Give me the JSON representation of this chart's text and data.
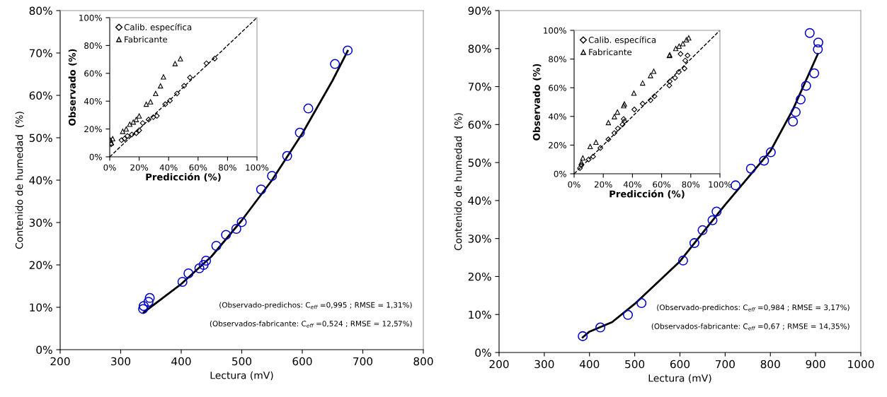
{
  "chart_data": [
    {
      "type": "scatter",
      "xlabel": "Lectura (mV)",
      "ylabel": "Contenido de humedad  (%)",
      "xlim": [
        200,
        800
      ],
      "xticks": [
        200,
        300,
        400,
        500,
        600,
        700,
        800
      ],
      "ylim": [
        0,
        80
      ],
      "yticks": [
        {
          "value": 0,
          "label": "0%"
        },
        {
          "value": 10,
          "label": "10%"
        },
        {
          "value": 20,
          "label": "20%"
        },
        {
          "value": 30,
          "label": "30%"
        },
        {
          "value": 40,
          "label": "40%"
        },
        {
          "value": 50,
          "label": "50%"
        },
        {
          "value": 60,
          "label": "60%"
        },
        {
          "value": 70,
          "label": "70%"
        },
        {
          "value": 80,
          "label": "80%"
        }
      ],
      "grid": false,
      "legend": false,
      "annotations": [
        "(Observado-predichos: C$_{eff}$ =0,995 ; RMSE = 1,31%)",
        "(Observados-fabricante: C$_{eff}$ =0,524 ; RMSE = 12,57%)"
      ],
      "series": [
        {
          "type": "scatter",
          "marker": "circle",
          "color": "#0000cc",
          "x": [
            337,
            338,
            346,
            348,
            402,
            412,
            430,
            437,
            441,
            458,
            474,
            491,
            500,
            532,
            550,
            575,
            596,
            610,
            654,
            675
          ],
          "values": [
            9.6,
            10.3,
            11.3,
            12.2,
            16,
            18,
            19.2,
            20,
            21,
            24.5,
            27.1,
            28.5,
            30.1,
            37.8,
            41,
            45.7,
            51.2,
            56.9,
            67.4,
            70.6
          ]
        },
        {
          "type": "line",
          "marker": "none",
          "line_style": "solid",
          "color": "#000000",
          "x": [
            338,
            400,
            450,
            500,
            550,
            600,
            650,
            675
          ],
          "values": [
            8.8,
            15.5,
            22,
            30.5,
            40,
            51,
            63.5,
            70.5
          ]
        }
      ]
    },
    {
      "type": "scatter",
      "xlabel": "Predicción (%)",
      "ylabel": "Observado (%)",
      "xlim": [
        0,
        100
      ],
      "xticks": [
        {
          "value": 0,
          "label": "0%"
        },
        {
          "value": 20,
          "label": "20%"
        },
        {
          "value": 40,
          "label": "40%"
        },
        {
          "value": 60,
          "label": "60%"
        },
        {
          "value": 80,
          "label": "80%"
        },
        {
          "value": 100,
          "label": "100%"
        }
      ],
      "ylim": [
        0,
        100
      ],
      "yticks": [
        {
          "value": 0,
          "label": "0%"
        },
        {
          "value": 20,
          "label": "20%"
        },
        {
          "value": 40,
          "label": "40%"
        },
        {
          "value": 60,
          "label": "60%"
        },
        {
          "value": 80,
          "label": "80%"
        },
        {
          "value": 100,
          "label": "100%"
        }
      ],
      "grid": false,
      "legend": "top left",
      "series": [
        {
          "type": "scatter",
          "name": "Calib. específica",
          "marker": "diamond",
          "color": "#000000",
          "x": [
            1,
            8,
            10,
            12,
            15,
            18,
            20,
            22.4,
            26.4,
            29.6,
            32,
            37.7,
            40.9,
            45.7,
            50.5,
            54.5,
            65.7,
            71.3
          ],
          "values": [
            9,
            12,
            13,
            15,
            16,
            17,
            19,
            24.3,
            26.8,
            28.5,
            29.4,
            37.8,
            40.4,
            45.5,
            51,
            57,
            67.2,
            70.6
          ]
        },
        {
          "type": "scatter",
          "name": "Fabricante",
          "marker": "triangle",
          "color": "#000000",
          "x": [
            0.5,
            1,
            2,
            8.8,
            11.2,
            13.6,
            16,
            18,
            20,
            24.8,
            27.7,
            31.2,
            34.5,
            36.5,
            44.4,
            48
          ],
          "values": [
            12,
            10,
            13,
            18.3,
            20,
            23.4,
            25,
            26.8,
            29.4,
            37.8,
            39.5,
            45.5,
            51,
            57.4,
            67,
            70.5
          ]
        },
        {
          "type": "line",
          "marker": "none",
          "line_style": "dashed",
          "color": "#000000",
          "x": [
            0,
            100
          ],
          "values": [
            0,
            100
          ]
        }
      ]
    },
    {
      "type": "scatter",
      "xlabel": "Lectura (mV)",
      "ylabel": "Contenido de humedad  (%)",
      "xlim": [
        200,
        1000
      ],
      "xticks": [
        200,
        300,
        400,
        500,
        600,
        700,
        800,
        900,
        1000
      ],
      "ylim": [
        0,
        90
      ],
      "yticks": [
        {
          "value": 0,
          "label": "0%"
        },
        {
          "value": 10,
          "label": "10%"
        },
        {
          "value": 20,
          "label": "20%"
        },
        {
          "value": 30,
          "label": "30%"
        },
        {
          "value": 40,
          "label": "40%"
        },
        {
          "value": 50,
          "label": "50%"
        },
        {
          "value": 60,
          "label": "60%"
        },
        {
          "value": 70,
          "label": "70%"
        },
        {
          "value": 80,
          "label": "80%"
        },
        {
          "value": 90,
          "label": "90%"
        }
      ],
      "grid": false,
      "legend": false,
      "annotations": [
        "(Observado-predichos: C$_{eff}$ =0,984 ; RMSE = 3,17%)",
        "(Observados-fabricante: C$_{eff}$ =0,67 ; RMSE = 14,35%)"
      ],
      "series": [
        {
          "type": "scatter",
          "marker": "circle",
          "color": "#0000cc",
          "x": [
            385,
            424,
            485,
            515,
            607,
            632,
            650,
            672,
            681,
            723,
            757,
            786,
            801,
            850,
            856,
            867,
            879,
            897,
            905,
            906,
            887
          ],
          "values": [
            4.3,
            6.6,
            9.9,
            13,
            24.2,
            28.8,
            32.2,
            34.8,
            37.1,
            44,
            48.4,
            50.5,
            52.7,
            60.8,
            63.3,
            66.6,
            70.2,
            73.5,
            79.8,
            81.6,
            84.1
          ]
        },
        {
          "type": "line",
          "marker": "none",
          "line_style": "solid",
          "color": "#000000",
          "x": [
            385,
            400,
            450,
            500,
            600,
            700,
            800,
            850,
            905
          ],
          "values": [
            4,
            5.5,
            8,
            12.8,
            24,
            38.9,
            53,
            64,
            78.6
          ]
        }
      ]
    },
    {
      "type": "scatter",
      "xlabel": "Predicción (%)",
      "ylabel": "Observado (%)",
      "xlim": [
        0,
        100
      ],
      "xticks": [
        {
          "value": 0,
          "label": "0%"
        },
        {
          "value": 20,
          "label": "20%"
        },
        {
          "value": 40,
          "label": "40%"
        },
        {
          "value": 60,
          "label": "60%"
        },
        {
          "value": 80,
          "label": "80%"
        },
        {
          "value": 100,
          "label": "100%"
        }
      ],
      "ylim": [
        0,
        100
      ],
      "yticks": [
        {
          "value": 0,
          "label": "0%"
        },
        {
          "value": 20,
          "label": "20%"
        },
        {
          "value": 40,
          "label": "40%"
        },
        {
          "value": 60,
          "label": "60%"
        },
        {
          "value": 80,
          "label": "80%"
        },
        {
          "value": 100,
          "label": "100%"
        }
      ],
      "grid": false,
      "legend": "top left",
      "series": [
        {
          "type": "scatter",
          "name": "Calib. específica",
          "marker": "diamond",
          "color": "#000000",
          "x": [
            4,
            5,
            10,
            13,
            18,
            23.5,
            27.6,
            30,
            33.2,
            34.5,
            34,
            41.3,
            47,
            52.4,
            55.1,
            65.3,
            65.6,
            69.2,
            71.8,
            73,
            75.7,
            76.2,
            77.8
          ],
          "values": [
            4,
            6,
            10,
            12,
            18,
            24,
            28.4,
            31.6,
            34.4,
            36.6,
            38.2,
            44.8,
            48.9,
            51.3,
            54.1,
            61.6,
            64.4,
            66.9,
            71,
            83.6,
            73.4,
            79,
            82.5
          ]
        },
        {
          "type": "scatter",
          "name": "Fabricante",
          "marker": "triangle",
          "color": "#000000",
          "x": [
            5,
            6,
            11,
            15,
            23.5,
            27.6,
            29.7,
            34,
            34.5,
            41,
            47,
            52.4,
            54.6,
            65.3,
            65.6,
            69.7,
            72,
            74.6,
            77,
            78.6
          ],
          "values": [
            8,
            11,
            19,
            22,
            35.7,
            39.8,
            43,
            47.5,
            48.7,
            56.2,
            63.3,
            68.5,
            71.5,
            82.5,
            82.9,
            87.4,
            89,
            90.7,
            93.4,
            94.8
          ]
        },
        {
          "type": "line",
          "marker": "none",
          "line_style": "dashed",
          "color": "#000000",
          "x": [
            0,
            100
          ],
          "values": [
            0,
            100
          ]
        }
      ]
    }
  ]
}
